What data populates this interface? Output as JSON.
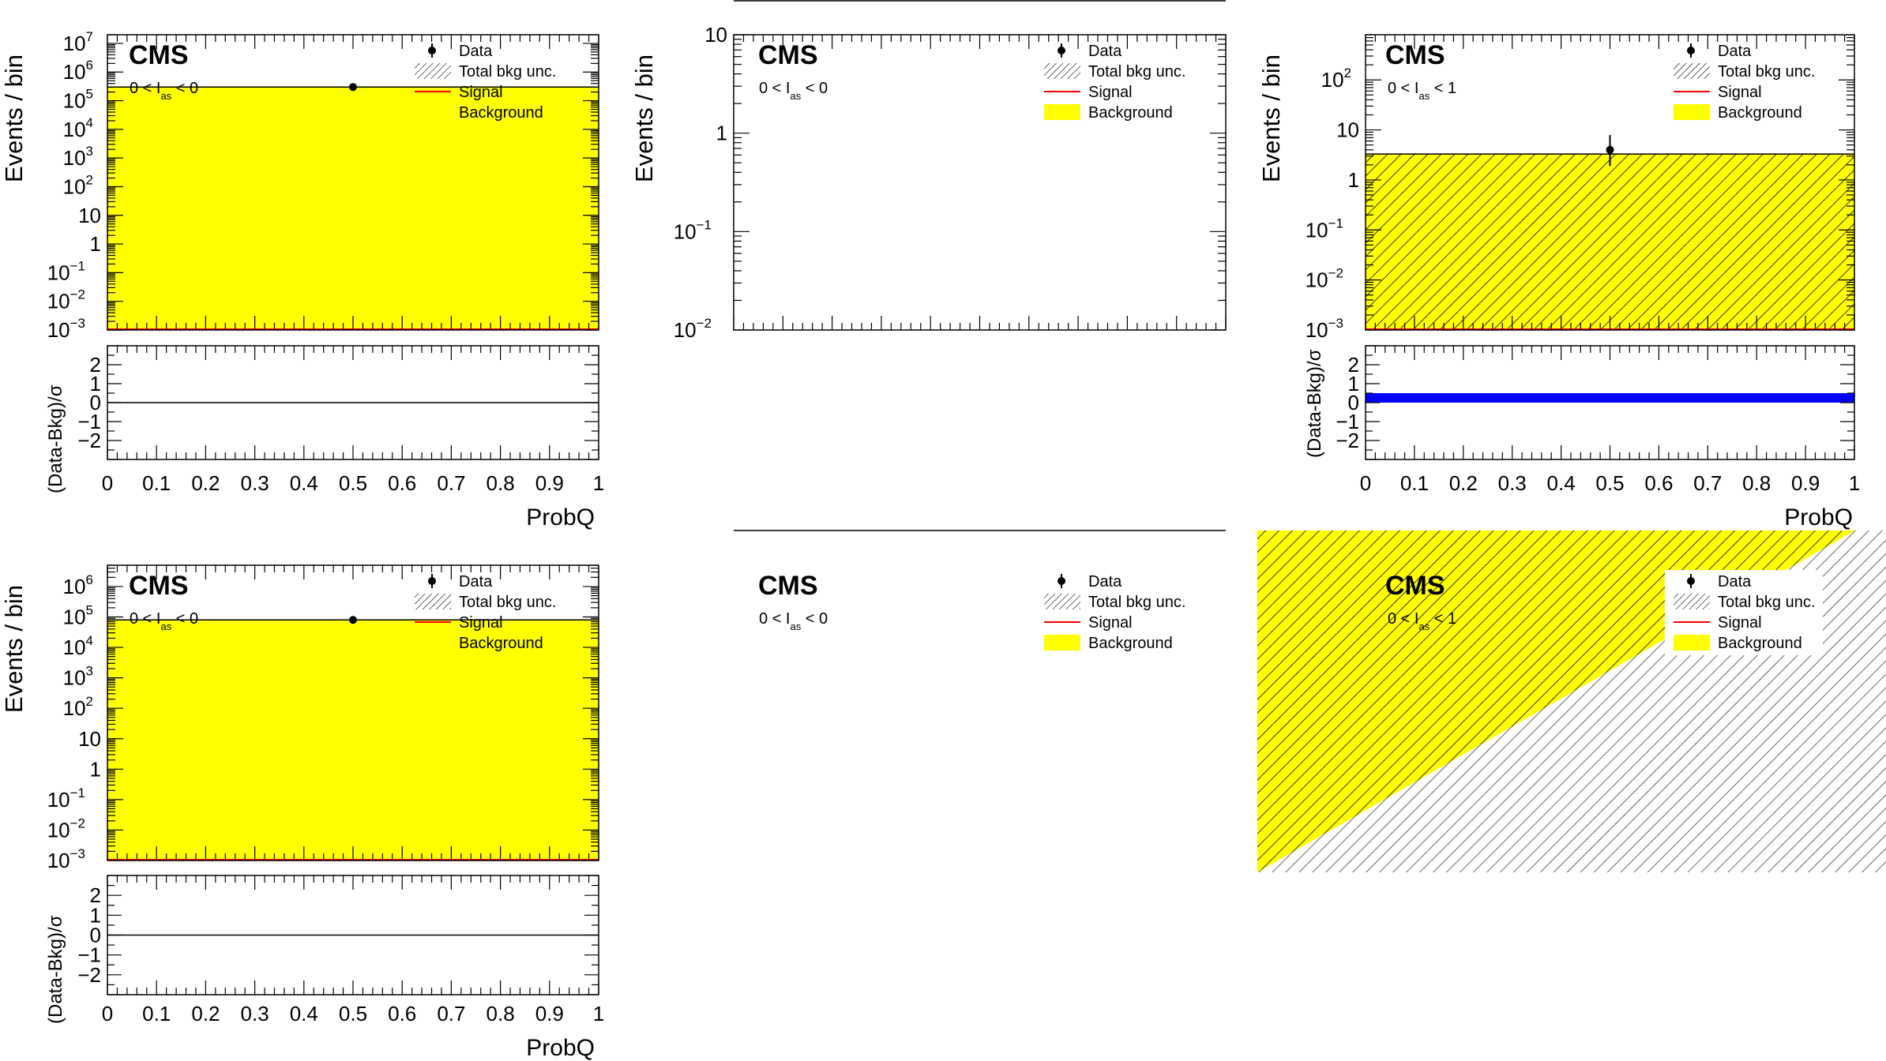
{
  "colors": {
    "background_fill": "#ffff00",
    "signal_line": "#ff0000",
    "data_marker": "#000000",
    "pull_band": "#0000ff",
    "axis": "#000000"
  },
  "chart_data": [
    {
      "panel": "top-left",
      "type": "bar",
      "cms_label": "CMS",
      "region": {
        "pre": "0 < I",
        "sub": "as",
        "post": " < 0"
      },
      "legend": [
        "Data",
        "Total bkg unc.",
        "Signal",
        "Background"
      ],
      "ylabel": "Events / bin",
      "xlabel": "ProbQ",
      "log_y": true,
      "ylim": [
        0.001,
        20000000
      ],
      "xlim": [
        0,
        1
      ],
      "xticks": [
        "0",
        "0.1",
        "0.2",
        "0.3",
        "0.4",
        "0.5",
        "0.6",
        "0.7",
        "0.8",
        "0.9",
        "1"
      ],
      "yticks": [
        {
          "base": "10",
          "exp": "7",
          "value": 10000000
        },
        {
          "base": "10",
          "exp": "6",
          "value": 1000000
        },
        {
          "base": "10",
          "exp": "5",
          "value": 100000
        },
        {
          "base": "10",
          "exp": "4",
          "value": 10000
        },
        {
          "base": "10",
          "exp": "3",
          "value": 1000
        },
        {
          "base": "10",
          "exp": "2",
          "value": 100
        },
        {
          "base": "10",
          "exp": "",
          "value": 10
        },
        {
          "base": "1",
          "exp": "",
          "value": 1
        },
        {
          "base": "10",
          "exp": "−1",
          "value": 0.1
        },
        {
          "base": "10",
          "exp": "−2",
          "value": 0.01
        },
        {
          "base": "10",
          "exp": "−3",
          "value": 0.001
        }
      ],
      "background": 300000,
      "data_point": {
        "x": 0.5,
        "y": 300000,
        "err": 0
      },
      "hatch_full": false,
      "ratio": {
        "ylabel": "(Data-Bkg)/σ",
        "ylim": [
          -3,
          3
        ],
        "yticks": [
          "2",
          "1",
          "0",
          "−1",
          "−2"
        ],
        "line_at": 0,
        "band": false
      }
    },
    {
      "panel": "top-middle",
      "type": "bar",
      "cms_label": "CMS",
      "region": {
        "pre": "0 < I",
        "sub": "as",
        "post": " < 0"
      },
      "legend": [
        "Data",
        "Total bkg unc.",
        "Signal",
        "Background"
      ],
      "ylabel": "Events / bin",
      "log_y": true,
      "ylim": [
        0.01,
        10
      ],
      "xlim": [
        0,
        1
      ],
      "yticks": [
        {
          "base": "10",
          "exp": "",
          "value": 10
        },
        {
          "base": "1",
          "exp": "",
          "value": 1
        },
        {
          "base": "10",
          "exp": "−1",
          "value": 0.1
        },
        {
          "base": "10",
          "exp": "−2",
          "value": 0.01
        }
      ],
      "background": null,
      "data_point": null
    },
    {
      "panel": "top-right",
      "type": "bar",
      "cms_label": "CMS",
      "region": {
        "pre": "0 < I",
        "sub": "as",
        "post": " < 1"
      },
      "legend": [
        "Data",
        "Total bkg unc.",
        "Signal",
        "Background"
      ],
      "ylabel": "Events / bin",
      "xlabel": "ProbQ",
      "log_y": true,
      "ylim": [
        0.001,
        800
      ],
      "xlim": [
        0,
        1
      ],
      "xticks": [
        "0",
        "0.1",
        "0.2",
        "0.3",
        "0.4",
        "0.5",
        "0.6",
        "0.7",
        "0.8",
        "0.9",
        "1"
      ],
      "yticks": [
        {
          "base": "10",
          "exp": "2",
          "value": 100
        },
        {
          "base": "10",
          "exp": "",
          "value": 10
        },
        {
          "base": "1",
          "exp": "",
          "value": 1
        },
        {
          "base": "10",
          "exp": "−1",
          "value": 0.1
        },
        {
          "base": "10",
          "exp": "−2",
          "value": 0.01
        },
        {
          "base": "10",
          "exp": "−3",
          "value": 0.001
        }
      ],
      "background": 3.3,
      "data_point": {
        "x": 0.5,
        "y": 4,
        "err_low": 1.9,
        "err_high": 7.9
      },
      "hatch_full": true,
      "ratio": {
        "ylabel": "(Data-Bkg)/σ",
        "ylim": [
          -3,
          3
        ],
        "yticks": [
          "2",
          "1",
          "0",
          "−1",
          "−2"
        ],
        "line_at": 0.25,
        "band": true
      }
    },
    {
      "panel": "bottom-left",
      "type": "bar",
      "cms_label": "CMS",
      "region": {
        "pre": "0 < I",
        "sub": "as",
        "post": " < 0"
      },
      "legend": [
        "Data",
        "Total bkg unc.",
        "Signal",
        "Background"
      ],
      "ylabel": "Events / bin",
      "xlabel": "ProbQ",
      "log_y": true,
      "ylim": [
        0.001,
        5000000
      ],
      "xlim": [
        0,
        1
      ],
      "xticks": [
        "0",
        "0.1",
        "0.2",
        "0.3",
        "0.4",
        "0.5",
        "0.6",
        "0.7",
        "0.8",
        "0.9",
        "1"
      ],
      "yticks": [
        {
          "base": "10",
          "exp": "6",
          "value": 1000000
        },
        {
          "base": "10",
          "exp": "5",
          "value": 100000
        },
        {
          "base": "10",
          "exp": "4",
          "value": 10000
        },
        {
          "base": "10",
          "exp": "3",
          "value": 1000
        },
        {
          "base": "10",
          "exp": "2",
          "value": 100
        },
        {
          "base": "10",
          "exp": "",
          "value": 10
        },
        {
          "base": "1",
          "exp": "",
          "value": 1
        },
        {
          "base": "10",
          "exp": "−1",
          "value": 0.1
        },
        {
          "base": "10",
          "exp": "−2",
          "value": 0.01
        },
        {
          "base": "10",
          "exp": "−3",
          "value": 0.001
        }
      ],
      "background": 80000,
      "data_point": {
        "x": 0.5,
        "y": 80000,
        "err": 0
      },
      "hatch_full": false,
      "ratio": {
        "ylabel": "(Data-Bkg)/σ",
        "ylim": [
          -3,
          3
        ],
        "yticks": [
          "2",
          "1",
          "0",
          "−1",
          "−2"
        ],
        "line_at": 0,
        "band": false
      }
    },
    {
      "panel": "bottom-middle",
      "type": "bar",
      "cms_label": "CMS",
      "region": {
        "pre": "0 < I",
        "sub": "as",
        "post": " < 0"
      },
      "legend": [
        "Data",
        "Total bkg unc.",
        "Signal",
        "Background"
      ]
    },
    {
      "panel": "bottom-right",
      "type": "bar",
      "cms_label": "CMS",
      "region": {
        "pre": "0 < I",
        "sub": "as",
        "post": " < 1"
      },
      "legend": [
        "Data",
        "Total bkg unc.",
        "Signal",
        "Background"
      ]
    }
  ]
}
